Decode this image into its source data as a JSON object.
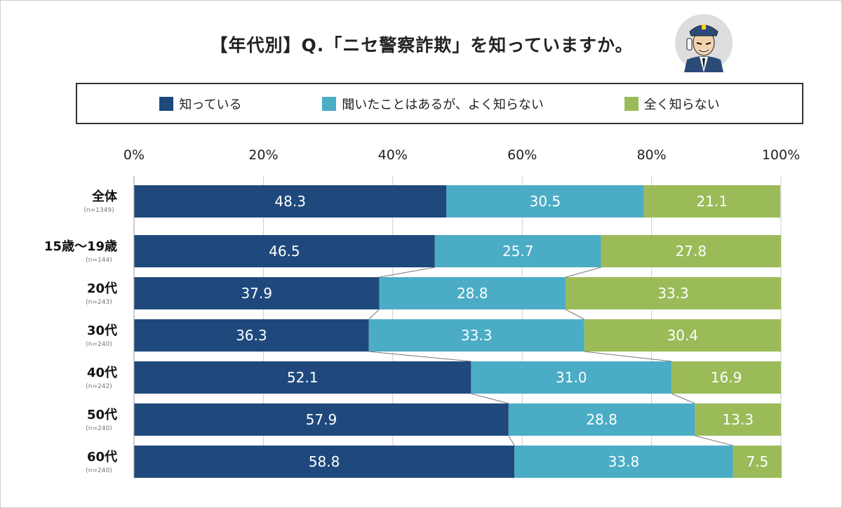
{
  "title": "【年代別】Q.「ニセ警察詐欺」を知っていますか。",
  "colors": {
    "know": "#1f497d",
    "heard": "#4bacc6",
    "unknown": "#9bbb59"
  },
  "legend": [
    "知っている",
    "聞いたことはあるが、よく知らない",
    "全く知らない"
  ],
  "chart_data": {
    "type": "bar",
    "orientation": "horizontal",
    "stacked": true,
    "xlim": [
      0,
      100
    ],
    "ticks": [
      "0%",
      "20%",
      "40%",
      "60%",
      "80%",
      "100%"
    ],
    "categories": [
      "全体",
      "15歳〜19歳",
      "20代",
      "30代",
      "40代",
      "50代",
      "60代"
    ],
    "sample_sizes": [
      "(n=1349)",
      "(n=144)",
      "(n=243)",
      "(n=240)",
      "(n=242)",
      "(n=240)",
      "(n=240)"
    ],
    "series": [
      {
        "name": "知っている",
        "values": [
          48.3,
          46.5,
          37.9,
          36.3,
          52.1,
          57.9,
          58.8
        ]
      },
      {
        "name": "聞いたことはあるが、よく知らない",
        "values": [
          30.5,
          25.7,
          28.8,
          33.3,
          31.0,
          28.8,
          33.8
        ]
      },
      {
        "name": "全く知らない",
        "values": [
          21.1,
          27.8,
          33.3,
          30.4,
          16.9,
          13.3,
          7.5
        ]
      }
    ],
    "grid": true,
    "legend_position": "top"
  }
}
